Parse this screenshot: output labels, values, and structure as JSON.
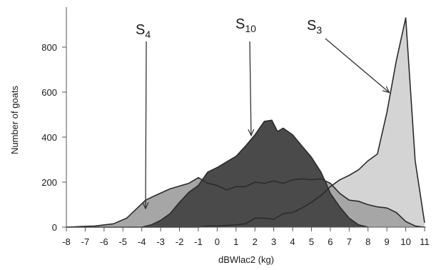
{
  "chart_data": {
    "type": "area",
    "xlabel": "dBWlac2 (kg)",
    "ylabel": "Number of goats",
    "xlim": [
      -8,
      11
    ],
    "ylim": [
      0,
      950
    ],
    "x_ticks": [
      "-8",
      "-7",
      "-6",
      "-5",
      "-4",
      "-3",
      "-2",
      "-1",
      "0",
      "1",
      "2",
      "3",
      "4",
      "5",
      "6",
      "7",
      "8",
      "9",
      "10",
      "11"
    ],
    "y_ticks": [
      "0",
      "200",
      "400",
      "600",
      "800"
    ],
    "series": [
      {
        "name": "S3",
        "color": "#d4d4d4",
        "points": [
          [
            -8,
            0
          ],
          [
            -4,
            0
          ],
          [
            -3,
            0
          ],
          [
            -2,
            0
          ],
          [
            -1,
            0
          ],
          [
            -0.5,
            5
          ],
          [
            0,
            5
          ],
          [
            1,
            10
          ],
          [
            1.5,
            15
          ],
          [
            2,
            40
          ],
          [
            2.5,
            40
          ],
          [
            3,
            35
          ],
          [
            3.5,
            60
          ],
          [
            4,
            65
          ],
          [
            4.5,
            85
          ],
          [
            5,
            110
          ],
          [
            5.5,
            140
          ],
          [
            6,
            180
          ],
          [
            6.5,
            210
          ],
          [
            7,
            230
          ],
          [
            7.5,
            255
          ],
          [
            8,
            295
          ],
          [
            8.5,
            325
          ],
          [
            9,
            510
          ],
          [
            9.5,
            740
          ],
          [
            10,
            930
          ],
          [
            10.5,
            295
          ],
          [
            11,
            20
          ]
        ]
      },
      {
        "name": "S4",
        "color": "#a6a6a6",
        "points": [
          [
            -8,
            0
          ],
          [
            -7.2,
            3
          ],
          [
            -6.5,
            5
          ],
          [
            -5.5,
            15
          ],
          [
            -4.8,
            40
          ],
          [
            -4.3,
            80
          ],
          [
            -3.8,
            120
          ],
          [
            -3.3,
            140
          ],
          [
            -2.5,
            170
          ],
          [
            -1.5,
            195
          ],
          [
            -1,
            220
          ],
          [
            -0.8,
            210
          ],
          [
            -0.5,
            195
          ],
          [
            0,
            185
          ],
          [
            0.5,
            165
          ],
          [
            1,
            180
          ],
          [
            1.5,
            180
          ],
          [
            2,
            200
          ],
          [
            2.5,
            195
          ],
          [
            3,
            205
          ],
          [
            3.5,
            195
          ],
          [
            4,
            210
          ],
          [
            4.5,
            215
          ],
          [
            5,
            210
          ],
          [
            5.5,
            215
          ],
          [
            6,
            195
          ],
          [
            6.5,
            150
          ],
          [
            7,
            120
          ],
          [
            7.5,
            115
          ],
          [
            8,
            100
          ],
          [
            8.5,
            90
          ],
          [
            9,
            85
          ],
          [
            9.5,
            65
          ],
          [
            10,
            25
          ],
          [
            10.5,
            5
          ],
          [
            11,
            0
          ]
        ]
      },
      {
        "name": "S10",
        "color": "#4a4a4a",
        "points": [
          [
            -4,
            0
          ],
          [
            -3.5,
            10
          ],
          [
            -3,
            30
          ],
          [
            -2.5,
            60
          ],
          [
            -2,
            110
          ],
          [
            -1.5,
            155
          ],
          [
            -1,
            185
          ],
          [
            -0.5,
            245
          ],
          [
            0,
            265
          ],
          [
            0.5,
            290
          ],
          [
            1,
            315
          ],
          [
            1.5,
            360
          ],
          [
            2,
            410
          ],
          [
            2.5,
            470
          ],
          [
            2.9,
            475
          ],
          [
            3.2,
            425
          ],
          [
            3.5,
            440
          ],
          [
            4,
            410
          ],
          [
            4.5,
            360
          ],
          [
            5,
            310
          ],
          [
            5.5,
            245
          ],
          [
            5.8,
            190
          ],
          [
            6,
            150
          ],
          [
            6.5,
            90
          ],
          [
            7,
            40
          ],
          [
            7.5,
            10
          ],
          [
            8,
            0
          ]
        ]
      }
    ],
    "annotations": [
      {
        "main": "S",
        "sub": "4",
        "target": [
          -3.8,
          85
        ]
      },
      {
        "main": "S",
        "sub": "10",
        "target": [
          1.8,
          410
        ]
      },
      {
        "main": "S",
        "sub": "3",
        "target": [
          9.1,
          600
        ]
      }
    ]
  }
}
